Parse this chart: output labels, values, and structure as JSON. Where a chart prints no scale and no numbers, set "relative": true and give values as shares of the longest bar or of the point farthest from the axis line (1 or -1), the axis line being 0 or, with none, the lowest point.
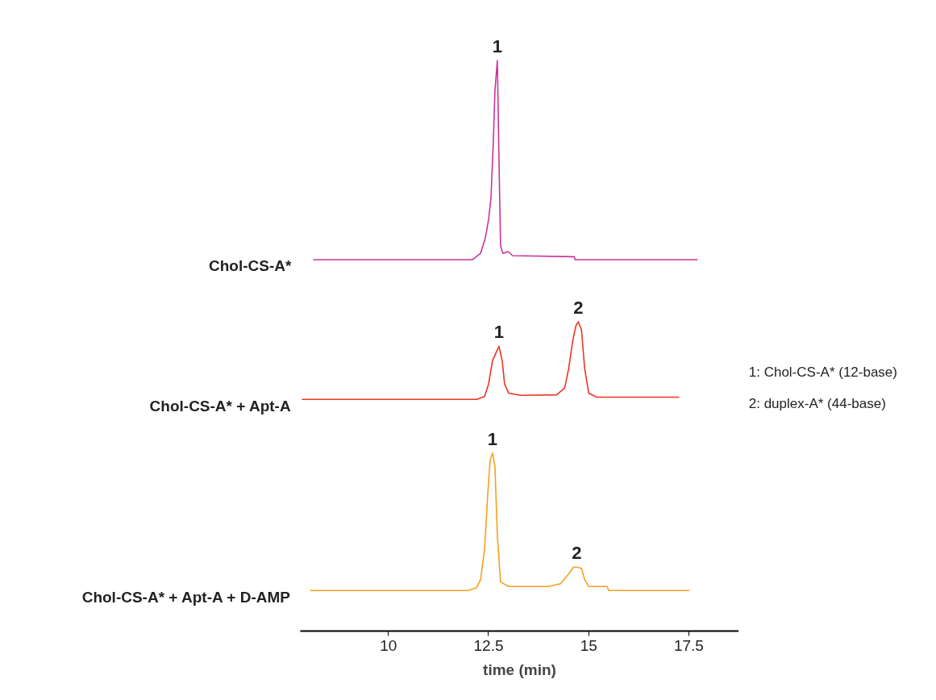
{
  "chart_data": {
    "type": "line",
    "relative": true,
    "xlim": [
      7.8,
      18.75
    ],
    "xticks": [
      10,
      12.5,
      15,
      17.5
    ],
    "tick_labels": "x",
    "grid": false,
    "marker": "none",
    "line_style": "solid",
    "xlabel": "time (min)",
    "series": [
      {
        "name": "Chol-CS-A*",
        "color": "#cc3399",
        "x": [
          8.12,
          12.1,
          12.3,
          12.42,
          12.5,
          12.56,
          12.62,
          12.66,
          12.72,
          12.76,
          12.8,
          12.86,
          12.99,
          13.1,
          14.64,
          14.66,
          17.72
        ],
        "values": [
          0.651,
          0.651,
          0.662,
          0.689,
          0.721,
          0.759,
          0.86,
          0.948,
          1,
          0.826,
          0.675,
          0.662,
          0.665,
          0.658,
          0.656,
          0.651,
          0.651
        ]
      },
      {
        "name": "Chol-CS-A* + Apt-A",
        "color": "#ee3322",
        "x": [
          7.84,
          12.2,
          12.4,
          12.5,
          12.6,
          12.7,
          12.76,
          12.84,
          12.9,
          13.0,
          13.3,
          14.2,
          14.4,
          14.5,
          14.6,
          14.68,
          14.74,
          14.82,
          14.9,
          15.0,
          15.2,
          17.26
        ],
        "values": [
          0.406,
          0.406,
          0.411,
          0.433,
          0.474,
          0.49,
          0.499,
          0.474,
          0.433,
          0.417,
          0.413,
          0.414,
          0.426,
          0.46,
          0.508,
          0.535,
          0.542,
          0.528,
          0.46,
          0.417,
          0.41,
          0.41
        ]
      },
      {
        "name": "Chol-CS-A* + Apt-A + D-AMP",
        "color": "#f5a020",
        "x": [
          8.04,
          12.0,
          12.2,
          12.3,
          12.4,
          12.48,
          12.54,
          12.6,
          12.66,
          12.72,
          12.8,
          13.0,
          14.0,
          14.3,
          14.5,
          14.62,
          14.7,
          14.82,
          14.9,
          15.0,
          15.46,
          15.5,
          17.52
        ],
        "values": [
          0.071,
          0.071,
          0.076,
          0.09,
          0.143,
          0.24,
          0.3,
          0.312,
          0.288,
          0.167,
          0.086,
          0.078,
          0.078,
          0.083,
          0.1,
          0.112,
          0.112,
          0.11,
          0.09,
          0.078,
          0.078,
          0.071,
          0.071
        ]
      }
    ],
    "annotations": [
      {
        "text": "1",
        "x": 12.72,
        "y": 1
      },
      {
        "text": "1",
        "x": 12.76,
        "y": 0.499
      },
      {
        "text": "2",
        "x": 14.74,
        "y": 0.542
      },
      {
        "text": "1",
        "x": 12.6,
        "y": 0.312
      },
      {
        "text": "2",
        "x": 14.7,
        "y": 0.112
      },
      "1: Chol-CS-A* (12-base)",
      "2: duplex-A* (44-base)"
    ]
  }
}
